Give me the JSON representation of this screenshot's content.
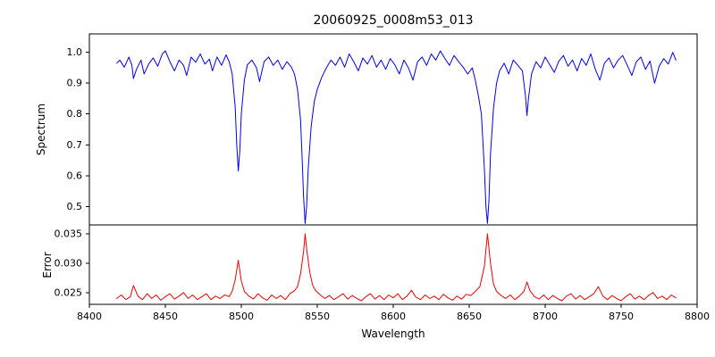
{
  "chart_data": {
    "type": "line",
    "title": "20060925_0008m53_013",
    "xlabel": "Wavelength",
    "xlim": [
      8400,
      8800
    ],
    "xticks": [
      8400,
      8450,
      8500,
      8550,
      8600,
      8650,
      8700,
      8750,
      8800
    ],
    "xtick_labels": [
      "8400",
      "8450",
      "8500",
      "8550",
      "8600",
      "8650",
      "8700",
      "8750",
      "8800"
    ],
    "grid": false,
    "legend": "none",
    "panels": [
      {
        "name": "spectrum",
        "ylabel": "Spectrum",
        "color": "#0000ee",
        "ylim": [
          0.44,
          1.06
        ],
        "yticks": [
          0.5,
          0.6,
          0.7,
          0.8,
          0.9,
          1.0
        ],
        "ytick_labels": [
          "0.5",
          "0.6",
          "0.7",
          "0.8",
          "0.9",
          "1.0"
        ],
        "points": [
          [
            8418,
            0.965
          ],
          [
            8420,
            0.975
          ],
          [
            8423,
            0.952
          ],
          [
            8426,
            0.985
          ],
          [
            8428,
            0.958
          ],
          [
            8429,
            0.915
          ],
          [
            8431,
            0.945
          ],
          [
            8434,
            0.975
          ],
          [
            8436,
            0.93
          ],
          [
            8439,
            0.962
          ],
          [
            8442,
            0.982
          ],
          [
            8445,
            0.955
          ],
          [
            8448,
            0.995
          ],
          [
            8450,
            1.005
          ],
          [
            8453,
            0.97
          ],
          [
            8456,
            0.94
          ],
          [
            8459,
            0.975
          ],
          [
            8462,
            0.958
          ],
          [
            8464,
            0.925
          ],
          [
            8467,
            0.985
          ],
          [
            8470,
            0.968
          ],
          [
            8473,
            0.995
          ],
          [
            8476,
            0.962
          ],
          [
            8479,
            0.978
          ],
          [
            8481,
            0.94
          ],
          [
            8484,
            0.985
          ],
          [
            8487,
            0.958
          ],
          [
            8490,
            0.992
          ],
          [
            8492,
            0.97
          ],
          [
            8494,
            0.93
          ],
          [
            8496,
            0.82
          ],
          [
            8497,
            0.7
          ],
          [
            8498,
            0.615
          ],
          [
            8499,
            0.68
          ],
          [
            8500,
            0.8
          ],
          [
            8502,
            0.91
          ],
          [
            8504,
            0.96
          ],
          [
            8507,
            0.975
          ],
          [
            8510,
            0.95
          ],
          [
            8512,
            0.905
          ],
          [
            8515,
            0.97
          ],
          [
            8518,
            0.985
          ],
          [
            8521,
            0.958
          ],
          [
            8524,
            0.975
          ],
          [
            8527,
            0.945
          ],
          [
            8530,
            0.97
          ],
          [
            8533,
            0.952
          ],
          [
            8535,
            0.93
          ],
          [
            8537,
            0.88
          ],
          [
            8539,
            0.78
          ],
          [
            8540,
            0.66
          ],
          [
            8541,
            0.53
          ],
          [
            8542,
            0.445
          ],
          [
            8543,
            0.5
          ],
          [
            8544,
            0.62
          ],
          [
            8546,
            0.76
          ],
          [
            8548,
            0.84
          ],
          [
            8550,
            0.88
          ],
          [
            8553,
            0.92
          ],
          [
            8556,
            0.95
          ],
          [
            8559,
            0.975
          ],
          [
            8562,
            0.958
          ],
          [
            8565,
            0.985
          ],
          [
            8568,
            0.952
          ],
          [
            8571,
            0.995
          ],
          [
            8574,
            0.97
          ],
          [
            8577,
            0.94
          ],
          [
            8580,
            0.982
          ],
          [
            8583,
            0.962
          ],
          [
            8586,
            0.99
          ],
          [
            8589,
            0.952
          ],
          [
            8592,
            0.975
          ],
          [
            8595,
            0.945
          ],
          [
            8598,
            0.98
          ],
          [
            8601,
            0.96
          ],
          [
            8604,
            0.93
          ],
          [
            8607,
            0.975
          ],
          [
            8610,
            0.95
          ],
          [
            8613,
            0.91
          ],
          [
            8616,
            0.97
          ],
          [
            8619,
            0.985
          ],
          [
            8622,
            0.958
          ],
          [
            8625,
            0.995
          ],
          [
            8628,
            0.975
          ],
          [
            8631,
            1.005
          ],
          [
            8634,
            0.98
          ],
          [
            8637,
            0.958
          ],
          [
            8640,
            0.99
          ],
          [
            8643,
            0.97
          ],
          [
            8646,
            0.952
          ],
          [
            8649,
            0.93
          ],
          [
            8652,
            0.95
          ],
          [
            8654,
            0.91
          ],
          [
            8656,
            0.86
          ],
          [
            8658,
            0.8
          ],
          [
            8660,
            0.62
          ],
          [
            8661,
            0.5
          ],
          [
            8662,
            0.445
          ],
          [
            8663,
            0.52
          ],
          [
            8664,
            0.67
          ],
          [
            8666,
            0.82
          ],
          [
            8668,
            0.9
          ],
          [
            8670,
            0.94
          ],
          [
            8673,
            0.965
          ],
          [
            8676,
            0.93
          ],
          [
            8679,
            0.975
          ],
          [
            8682,
            0.958
          ],
          [
            8685,
            0.94
          ],
          [
            8687,
            0.86
          ],
          [
            8688,
            0.795
          ],
          [
            8689,
            0.85
          ],
          [
            8691,
            0.93
          ],
          [
            8694,
            0.97
          ],
          [
            8697,
            0.95
          ],
          [
            8700,
            0.985
          ],
          [
            8703,
            0.96
          ],
          [
            8706,
            0.935
          ],
          [
            8709,
            0.972
          ],
          [
            8712,
            0.99
          ],
          [
            8715,
            0.955
          ],
          [
            8718,
            0.975
          ],
          [
            8721,
            0.94
          ],
          [
            8724,
            0.98
          ],
          [
            8727,
            0.958
          ],
          [
            8730,
            0.995
          ],
          [
            8733,
            0.945
          ],
          [
            8736,
            0.91
          ],
          [
            8739,
            0.965
          ],
          [
            8742,
            0.982
          ],
          [
            8745,
            0.95
          ],
          [
            8748,
            0.975
          ],
          [
            8751,
            0.99
          ],
          [
            8754,
            0.958
          ],
          [
            8757,
            0.925
          ],
          [
            8760,
            0.97
          ],
          [
            8763,
            0.985
          ],
          [
            8766,
            0.945
          ],
          [
            8769,
            0.972
          ],
          [
            8772,
            0.9
          ],
          [
            8775,
            0.955
          ],
          [
            8778,
            0.98
          ],
          [
            8781,
            0.962
          ],
          [
            8784,
            1.0
          ],
          [
            8786,
            0.975
          ]
        ]
      },
      {
        "name": "error",
        "ylabel": "Error",
        "color": "#ee0000",
        "ylim": [
          0.023,
          0.0365
        ],
        "yticks": [
          0.025,
          0.03,
          0.035
        ],
        "ytick_labels": [
          "0.025",
          "0.030",
          "0.035"
        ],
        "points": [
          [
            8418,
            0.024
          ],
          [
            8421,
            0.0246
          ],
          [
            8424,
            0.0238
          ],
          [
            8427,
            0.0243
          ],
          [
            8429,
            0.0262
          ],
          [
            8432,
            0.0244
          ],
          [
            8435,
            0.0238
          ],
          [
            8438,
            0.0248
          ],
          [
            8441,
            0.024
          ],
          [
            8444,
            0.0246
          ],
          [
            8447,
            0.0237
          ],
          [
            8450,
            0.0243
          ],
          [
            8453,
            0.0248
          ],
          [
            8456,
            0.0239
          ],
          [
            8459,
            0.0244
          ],
          [
            8462,
            0.025
          ],
          [
            8465,
            0.024
          ],
          [
            8468,
            0.0246
          ],
          [
            8471,
            0.0238
          ],
          [
            8474,
            0.0243
          ],
          [
            8477,
            0.0248
          ],
          [
            8480,
            0.0238
          ],
          [
            8483,
            0.0244
          ],
          [
            8486,
            0.024
          ],
          [
            8489,
            0.0246
          ],
          [
            8492,
            0.0243
          ],
          [
            8494,
            0.0252
          ],
          [
            8496,
            0.0272
          ],
          [
            8498,
            0.0305
          ],
          [
            8500,
            0.027
          ],
          [
            8502,
            0.0252
          ],
          [
            8505,
            0.0244
          ],
          [
            8508,
            0.0239
          ],
          [
            8511,
            0.0248
          ],
          [
            8514,
            0.0241
          ],
          [
            8517,
            0.0237
          ],
          [
            8520,
            0.0246
          ],
          [
            8523,
            0.024
          ],
          [
            8526,
            0.0245
          ],
          [
            8529,
            0.0238
          ],
          [
            8532,
            0.0248
          ],
          [
            8535,
            0.0253
          ],
          [
            8537,
            0.026
          ],
          [
            8539,
            0.0282
          ],
          [
            8541,
            0.032
          ],
          [
            8542,
            0.035
          ],
          [
            8543,
            0.0325
          ],
          [
            8545,
            0.0285
          ],
          [
            8547,
            0.0262
          ],
          [
            8549,
            0.0253
          ],
          [
            8552,
            0.0246
          ],
          [
            8555,
            0.024
          ],
          [
            8558,
            0.0245
          ],
          [
            8561,
            0.0238
          ],
          [
            8564,
            0.0243
          ],
          [
            8567,
            0.0248
          ],
          [
            8570,
            0.0239
          ],
          [
            8573,
            0.0245
          ],
          [
            8576,
            0.024
          ],
          [
            8579,
            0.0236
          ],
          [
            8582,
            0.0243
          ],
          [
            8585,
            0.0248
          ],
          [
            8588,
            0.0239
          ],
          [
            8591,
            0.0245
          ],
          [
            8594,
            0.0238
          ],
          [
            8597,
            0.0246
          ],
          [
            8600,
            0.0241
          ],
          [
            8603,
            0.0248
          ],
          [
            8606,
            0.0238
          ],
          [
            8609,
            0.0244
          ],
          [
            8612,
            0.0254
          ],
          [
            8615,
            0.0242
          ],
          [
            8618,
            0.0238
          ],
          [
            8621,
            0.0246
          ],
          [
            8624,
            0.024
          ],
          [
            8627,
            0.0244
          ],
          [
            8630,
            0.0238
          ],
          [
            8633,
            0.0247
          ],
          [
            8636,
            0.0241
          ],
          [
            8639,
            0.0237
          ],
          [
            8642,
            0.0244
          ],
          [
            8645,
            0.0239
          ],
          [
            8648,
            0.0247
          ],
          [
            8651,
            0.0245
          ],
          [
            8654,
            0.0252
          ],
          [
            8657,
            0.026
          ],
          [
            8660,
            0.0295
          ],
          [
            8662,
            0.035
          ],
          [
            8664,
            0.03
          ],
          [
            8666,
            0.0264
          ],
          [
            8668,
            0.0252
          ],
          [
            8671,
            0.0245
          ],
          [
            8674,
            0.024
          ],
          [
            8677,
            0.0246
          ],
          [
            8680,
            0.0238
          ],
          [
            8683,
            0.0244
          ],
          [
            8686,
            0.0252
          ],
          [
            8688,
            0.0268
          ],
          [
            8690,
            0.0253
          ],
          [
            8693,
            0.0243
          ],
          [
            8696,
            0.0239
          ],
          [
            8699,
            0.0246
          ],
          [
            8702,
            0.0238
          ],
          [
            8705,
            0.0245
          ],
          [
            8708,
            0.024
          ],
          [
            8711,
            0.0236
          ],
          [
            8714,
            0.0244
          ],
          [
            8717,
            0.0248
          ],
          [
            8720,
            0.0239
          ],
          [
            8723,
            0.0245
          ],
          [
            8726,
            0.0238
          ],
          [
            8729,
            0.0243
          ],
          [
            8732,
            0.0248
          ],
          [
            8735,
            0.026
          ],
          [
            8738,
            0.0244
          ],
          [
            8741,
            0.0238
          ],
          [
            8744,
            0.0245
          ],
          [
            8747,
            0.024
          ],
          [
            8750,
            0.0236
          ],
          [
            8753,
            0.0243
          ],
          [
            8756,
            0.0248
          ],
          [
            8759,
            0.0239
          ],
          [
            8762,
            0.0244
          ],
          [
            8765,
            0.0238
          ],
          [
            8768,
            0.0245
          ],
          [
            8771,
            0.025
          ],
          [
            8774,
            0.024
          ],
          [
            8777,
            0.0244
          ],
          [
            8780,
            0.0238
          ],
          [
            8783,
            0.0246
          ],
          [
            8786,
            0.0241
          ]
        ]
      }
    ]
  }
}
